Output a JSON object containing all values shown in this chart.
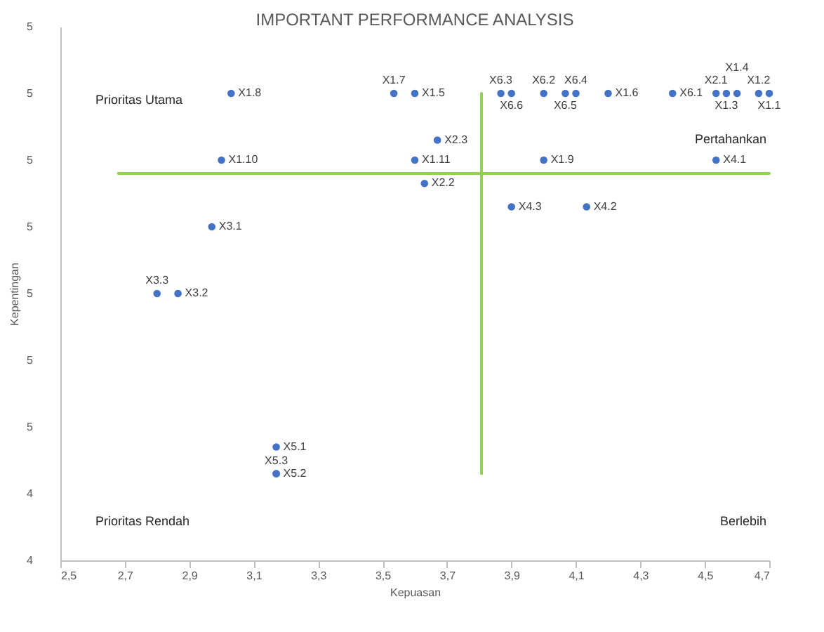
{
  "chart_data": {
    "type": "scatter",
    "title": "IMPORTANT PERFORMANCE ANALYSIS",
    "xlabel": "Kepuasan",
    "ylabel": "Kepentingan",
    "xlim": [
      2.5,
      4.7
    ],
    "xticks": [
      {
        "value": 2.5,
        "label": "2,5"
      },
      {
        "value": 2.7,
        "label": "2,7"
      },
      {
        "value": 2.9,
        "label": "2,9"
      },
      {
        "value": 3.1,
        "label": "3,1"
      },
      {
        "value": 3.3,
        "label": "3,3"
      },
      {
        "value": 3.5,
        "label": "3,5"
      },
      {
        "value": 3.7,
        "label": "3,7"
      },
      {
        "value": 3.9,
        "label": "3,9"
      },
      {
        "value": 4.1,
        "label": "4,1"
      },
      {
        "value": 4.3,
        "label": "4,3"
      },
      {
        "value": 4.5,
        "label": "4,5"
      },
      {
        "value": 4.7,
        "label": "4,7"
      }
    ],
    "ylim": [
      4.3,
      5.1
    ],
    "yticks": [
      {
        "value": 4.3,
        "label": "4"
      },
      {
        "value": 4.4,
        "label": "4"
      },
      {
        "value": 4.5,
        "label": "5"
      },
      {
        "value": 4.6,
        "label": "5"
      },
      {
        "value": 4.7,
        "label": "5"
      },
      {
        "value": 4.8,
        "label": "5"
      },
      {
        "value": 4.9,
        "label": "5"
      },
      {
        "value": 5.0,
        "label": "5"
      },
      {
        "value": 5.1,
        "label": "5"
      }
    ],
    "grid": false,
    "series": [
      {
        "type": "line",
        "color": "#92d050",
        "x": [
          3.807,
          3.807
        ],
        "values": [
          5.0,
          4.43
        ]
      },
      {
        "type": "line",
        "color": "#92d050",
        "x": [
          2.68,
          4.7
        ],
        "values": [
          4.88,
          4.88
        ]
      },
      {
        "color": "#4472c4",
        "marker": "circle",
        "x": [
          3.03,
          3.0,
          2.97,
          2.8,
          2.865,
          3.17,
          3.17,
          3.17,
          3.535,
          3.6,
          3.67,
          3.6,
          3.63,
          3.867,
          3.9,
          4.0,
          4.067,
          4.1,
          4.2,
          4.4,
          4.535,
          4.567,
          4.6,
          4.667,
          4.7,
          4.0,
          4.535,
          3.9,
          4.133
        ],
        "values": [
          5.0,
          4.9,
          4.8,
          4.7,
          4.7,
          4.47,
          4.43,
          4.43,
          5.0,
          5.0,
          4.93,
          4.9,
          4.865,
          5.0,
          5.0,
          5.0,
          5.0,
          5.0,
          5.0,
          5.0,
          5.0,
          5.0,
          5.0,
          5.0,
          5.0,
          4.9,
          4.9,
          4.83,
          4.83
        ],
        "value_labels": [
          "X1.8",
          "X1.10",
          "X3.1",
          "X3.3",
          "X3.2",
          "X5.1",
          "X5.2",
          "X5.3",
          "X1.7",
          "X1.5",
          "X2.3",
          "X1.11",
          "X2.2",
          "X6.3",
          "X6.6",
          "X6.2",
          "X6.5",
          "X6.4",
          "X1.6",
          "X6.1",
          "X2.1",
          "X1.3",
          "X1.4",
          "X1.2",
          "X1.1",
          "X1.9",
          "X4.1",
          "X4.3",
          "X4.2"
        ]
      }
    ],
    "annotations": [
      "Prioritas Utama",
      "Pertahankan",
      "Prioritas Rendah",
      "Berlebih"
    ]
  }
}
